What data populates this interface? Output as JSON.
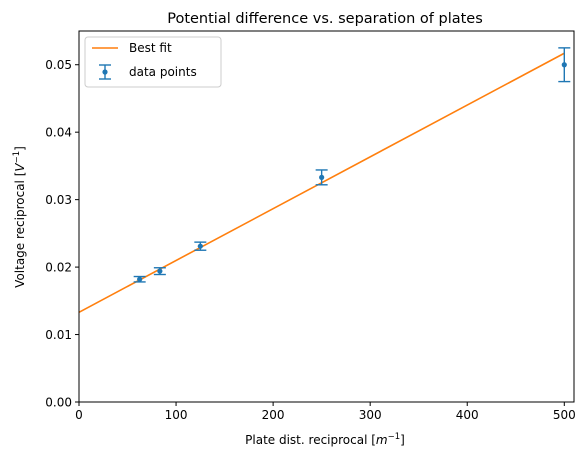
{
  "chart_data": {
    "type": "scatter",
    "title": "Potential difference vs. separation of plates",
    "xlabel": {
      "base": "Plate dist. reciprocal [",
      "var": "m",
      "sup": "−1",
      "end": "]"
    },
    "ylabel": {
      "base": "Voltage reciprocal [",
      "var": "V",
      "sup": "−1",
      "end": "]"
    },
    "xlim": [
      0,
      510
    ],
    "ylim": [
      0,
      0.055
    ],
    "xticks": [
      0,
      100,
      200,
      300,
      400,
      500
    ],
    "yticks": [
      0.0,
      0.01,
      0.02,
      0.03,
      0.04,
      0.05
    ],
    "xtick_labels": [
      "0",
      "100",
      "200",
      "300",
      "400",
      "500"
    ],
    "ytick_labels": [
      "0.00",
      "0.01",
      "0.02",
      "0.03",
      "0.04",
      "0.05"
    ],
    "grid": false,
    "legend_position": "top-left",
    "series": [
      {
        "name": "Best fit",
        "kind": "line",
        "color": "#ff7f0e",
        "x": [
          0,
          500
        ],
        "y": [
          0.0133,
          0.0517
        ]
      },
      {
        "name": "data points",
        "kind": "errorbar",
        "color": "#1f77b4",
        "x": [
          62.5,
          83.3,
          125,
          250,
          500
        ],
        "y": [
          0.0182,
          0.0194,
          0.0231,
          0.0333,
          0.05
        ],
        "yerr": [
          0.0004,
          0.0005,
          0.0006,
          0.0011,
          0.0025
        ]
      }
    ]
  }
}
